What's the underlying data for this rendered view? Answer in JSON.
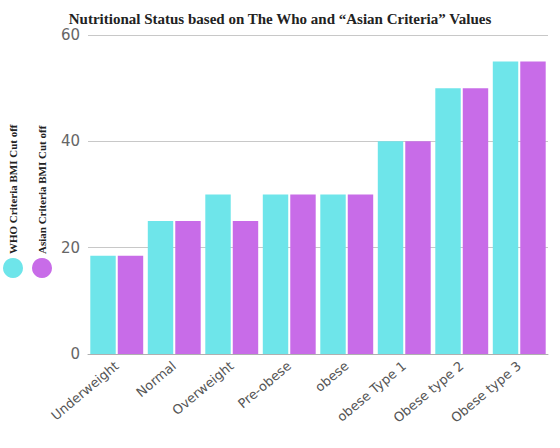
{
  "chart_data": {
    "type": "bar",
    "title": "Nutritional Status based on The Who and “Asian Criteria” Values",
    "categories": [
      "Underweight",
      "Normal",
      "Overweight",
      "Pre-obese",
      "obese",
      "obese Type 1",
      "Obese type 2",
      "Obese type 3"
    ],
    "series": [
      {
        "name": "WHO Criteria BMI Cut off",
        "color": "#6ee5ea",
        "values": [
          18.5,
          25,
          30,
          30,
          30,
          40,
          50,
          55
        ]
      },
      {
        "name": "Asian Criteria BMI Cut off",
        "color": "#c86ce8",
        "values": [
          18.5,
          25,
          25,
          30,
          30,
          40,
          50,
          55
        ]
      }
    ],
    "ylim": [
      0,
      60
    ],
    "yticks": [
      0,
      20,
      40,
      60
    ],
    "grid": true,
    "legend": "left"
  }
}
